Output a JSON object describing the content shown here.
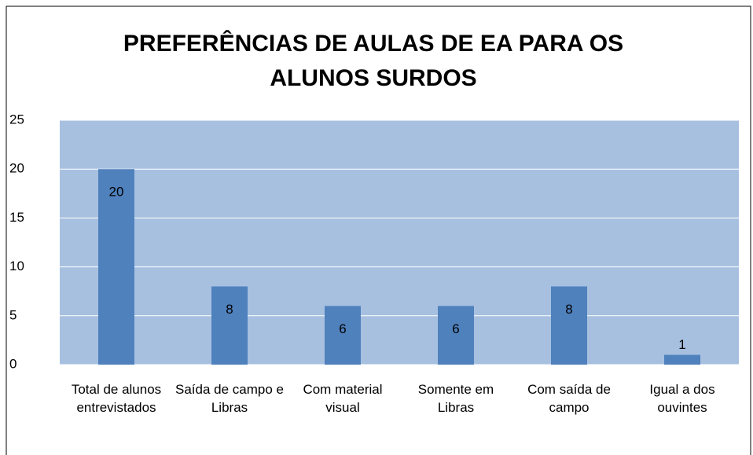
{
  "chart_data": {
    "type": "bar",
    "title": "PREFERÊNCIAS DE AULAS DE EA PARA OS ALUNOS SURDOS",
    "categories": [
      "Total de alunos entrevistados",
      "Saída de campo e Libras",
      "Com material visual",
      "Somente em Libras",
      "Com saída de campo",
      "Igual a dos ouvintes"
    ],
    "values": [
      20,
      8,
      6,
      6,
      8,
      1
    ],
    "color": "#4f81bd",
    "ylim": [
      0,
      25
    ],
    "yticks": [
      0,
      5,
      10,
      15,
      20,
      25
    ],
    "grid": true
  }
}
